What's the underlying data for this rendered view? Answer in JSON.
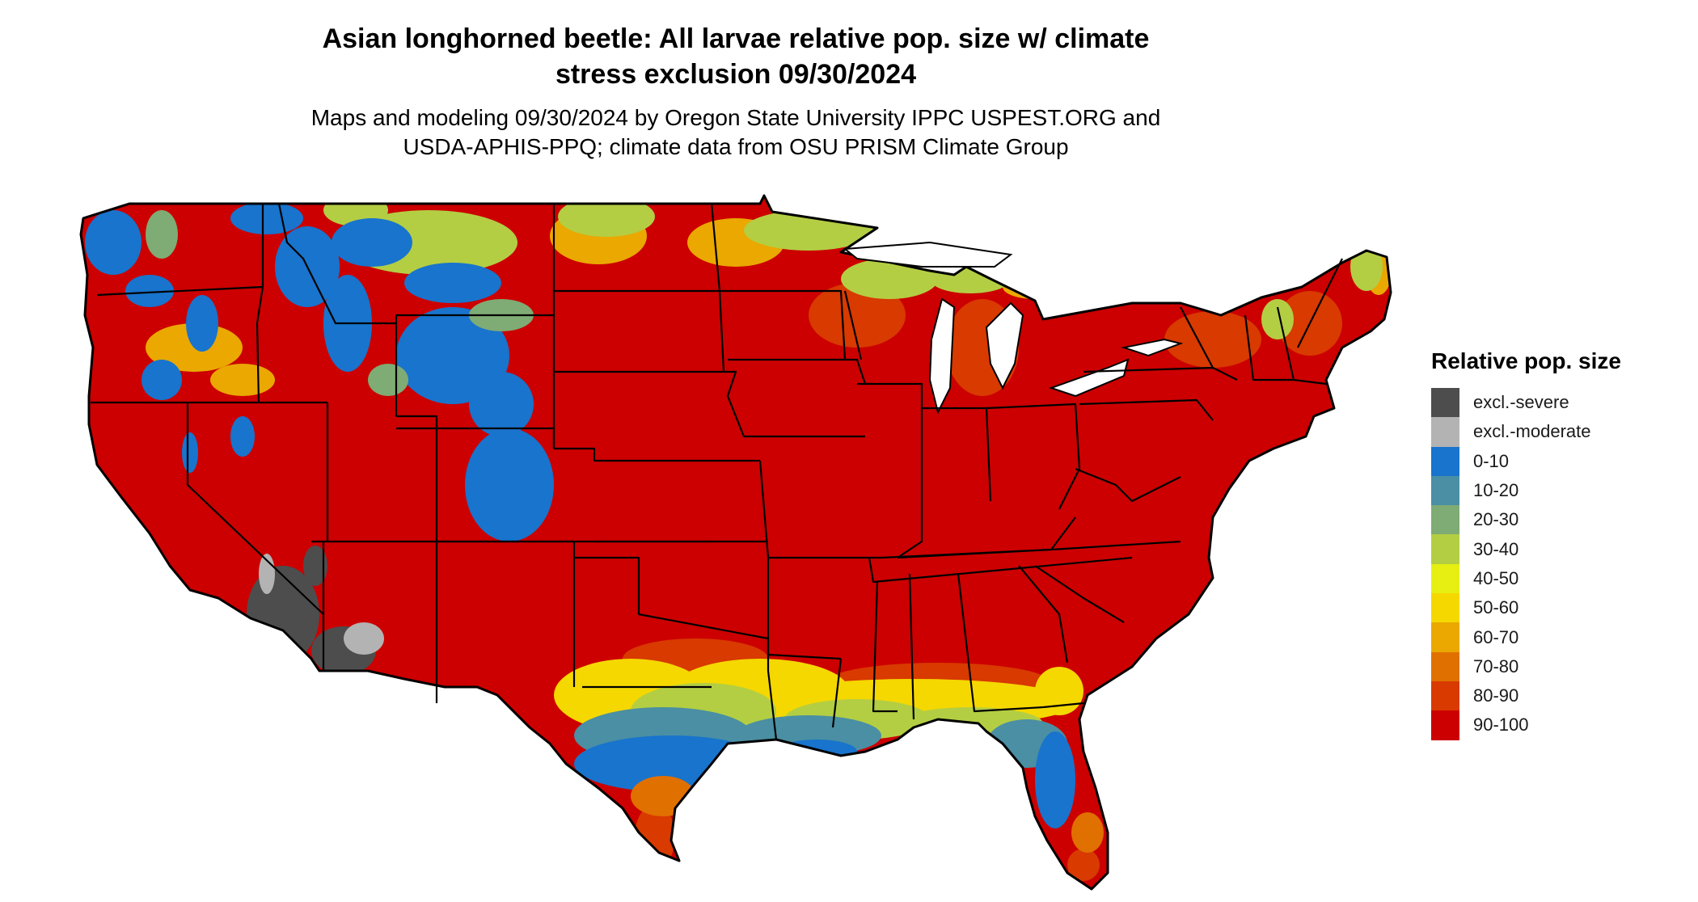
{
  "title": {
    "line1": "Asian longhorned beetle: All larvae relative pop. size w/ climate",
    "line2": "stress exclusion 09/30/2024"
  },
  "subtitle": {
    "line1": "Maps and modeling 09/30/2024 by Oregon State University IPPC USPEST.ORG and",
    "line2": "USDA-APHIS-PPQ; climate data from OSU PRISM Climate Group"
  },
  "legend": {
    "title": "Relative pop. size",
    "items": [
      {
        "label": "excl.-severe",
        "color": "#4d4d4d"
      },
      {
        "label": "excl.-moderate",
        "color": "#b3b3b3"
      },
      {
        "label": "0-10",
        "color": "#1874cd"
      },
      {
        "label": "10-20",
        "color": "#4a8fa3"
      },
      {
        "label": "20-30",
        "color": "#7fab74"
      },
      {
        "label": "30-40",
        "color": "#b3ce43"
      },
      {
        "label": "40-50",
        "color": "#e6ee12"
      },
      {
        "label": "50-60",
        "color": "#f5d800"
      },
      {
        "label": "60-70",
        "color": "#eaa800"
      },
      {
        "label": "70-80",
        "color": "#e07000"
      },
      {
        "label": "80-90",
        "color": "#d83a00"
      },
      {
        "label": "90-100",
        "color": "#cc0000"
      }
    ]
  },
  "map": {
    "region": "Contiguous United States",
    "base_color": "#cc0000",
    "border_color": "#000000"
  }
}
